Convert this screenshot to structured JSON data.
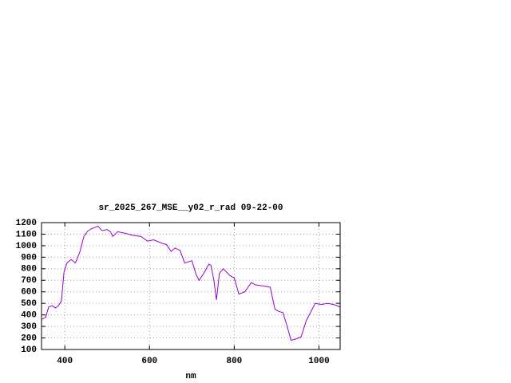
{
  "chart_data": {
    "type": "line",
    "title": "sr_2025_267_MSE__y02_r_rad 09-22-00",
    "x_label": "nm",
    "x": [
      345,
      355,
      362,
      370,
      378,
      385,
      392,
      398,
      405,
      415,
      425,
      435,
      445,
      455,
      465,
      472,
      478,
      488,
      500,
      508,
      513,
      525,
      540,
      560,
      580,
      595,
      610,
      630,
      640,
      651,
      660,
      672,
      683,
      700,
      710,
      717,
      728,
      740,
      745,
      752,
      758,
      765,
      774,
      790,
      800,
      811,
      825,
      840,
      850,
      870,
      885,
      896,
      905,
      915,
      925,
      934,
      945,
      958,
      970,
      980,
      991,
      1005,
      1020,
      1035,
      1049
    ],
    "series": [
      {
        "color": "#9400d3",
        "values": [
          360,
          380,
          470,
          480,
          460,
          480,
          520,
          770,
          850,
          880,
          850,
          940,
          1080,
          1130,
          1150,
          1160,
          1170,
          1130,
          1140,
          1120,
          1080,
          1120,
          1110,
          1090,
          1080,
          1040,
          1050,
          1020,
          1010,
          950,
          980,
          960,
          850,
          870,
          750,
          700,
          760,
          840,
          830,
          700,
          530,
          760,
          800,
          740,
          720,
          580,
          600,
          680,
          660,
          650,
          640,
          450,
          430,
          420,
          300,
          180,
          190,
          210,
          350,
          420,
          500,
          490,
          500,
          490,
          470
        ]
      }
    ],
    "xlim": [
      345,
      1050
    ],
    "xticks": [
      400,
      600,
      800,
      1000
    ],
    "ylim": [
      100,
      1200
    ],
    "yticks": [
      100,
      200,
      300,
      400,
      500,
      600,
      700,
      800,
      900,
      1000,
      1100,
      1200
    ],
    "grid": true
  }
}
